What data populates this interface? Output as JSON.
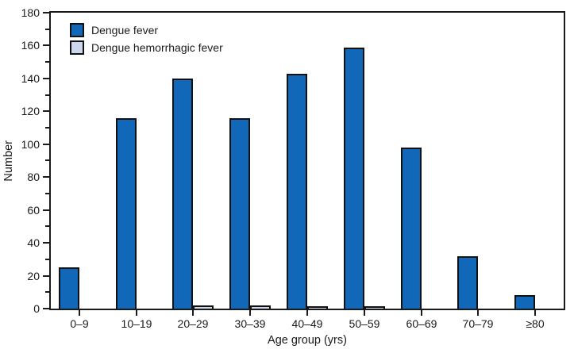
{
  "chart_data": {
    "type": "bar",
    "title": "",
    "categories": [
      "0–9",
      "10–19",
      "20–29",
      "30–39",
      "40–49",
      "50–59",
      "60–69",
      "70–79",
      "≥80"
    ],
    "series": [
      {
        "name": "Dengue fever",
        "color": "#1268b8",
        "values": [
          25,
          116,
          140,
          116,
          143,
          159,
          98,
          32,
          8
        ]
      },
      {
        "name": "Dengue hemorrhagic fever",
        "color": "#ccd6ec",
        "values": [
          0,
          0,
          2,
          2,
          1,
          1,
          0,
          0,
          0
        ]
      }
    ],
    "xlabel": "Age group (yrs)",
    "ylabel": "Number",
    "ylim": [
      0,
      180
    ],
    "y_major_step": 20,
    "y_minor_step": 10,
    "y_tick_labels": [
      "0",
      "20",
      "40",
      "60",
      "80",
      "100",
      "120",
      "140",
      "160",
      "180"
    ],
    "grid": false,
    "legend_position": "top-left",
    "frame_color": "#1a1a1a"
  }
}
